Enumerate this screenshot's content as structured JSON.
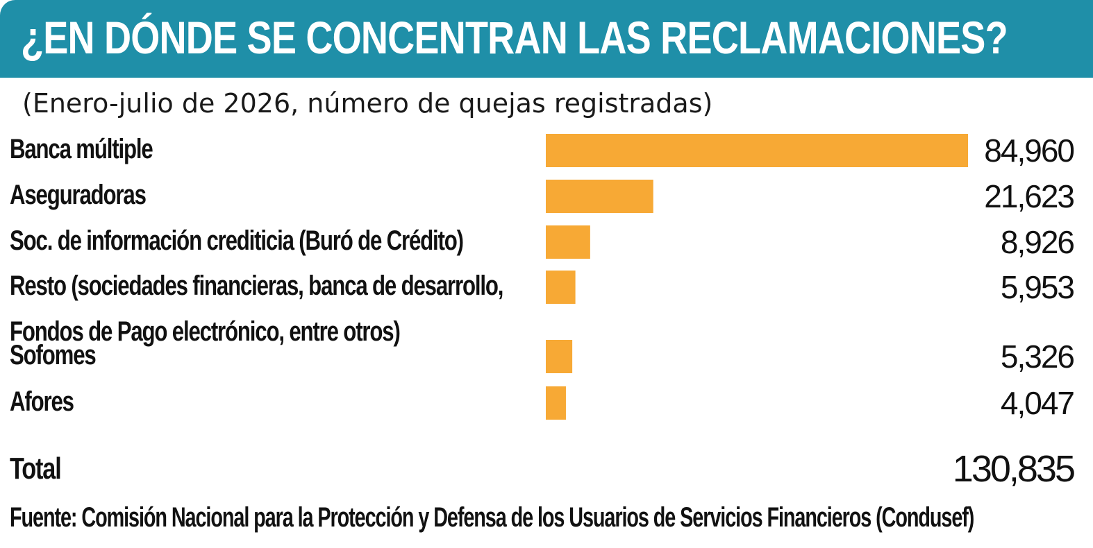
{
  "title": "¿EN DÓNDE SE CONCENTRAN LAS RECLAMACIONES?",
  "subtitle": "(Enero-julio de 2026, número de quejas registradas)",
  "chart_data": {
    "type": "bar",
    "orientation": "horizontal",
    "categories": [
      [
        "Banca múltiple"
      ],
      [
        "Aseguradoras"
      ],
      [
        "Soc. de información crediticia (Buró de Crédito)"
      ],
      [
        "Resto (sociedades financieras, banca de desarrollo,",
        "Fondos de Pago electrónico, entre otros)"
      ],
      [
        "Sofomes"
      ],
      [
        "Afores"
      ]
    ],
    "values": [
      84960,
      21623,
      8926,
      5953,
      5326,
      4047
    ],
    "value_labels": [
      "84,960",
      "21,623",
      "8,926",
      "5,953",
      "5,326",
      "4,047"
    ],
    "bar_color": "#f7a935"
  },
  "total": {
    "label": "Total",
    "value": "130,835"
  },
  "source": "Fuente: Comisión Nacional para la Protección y Defensa de los Usuarios de Servicios Financieros (Condusef)",
  "colors": {
    "header": "#1f8fa8",
    "title_text": "#ffffff",
    "bar": "#f7a935"
  }
}
